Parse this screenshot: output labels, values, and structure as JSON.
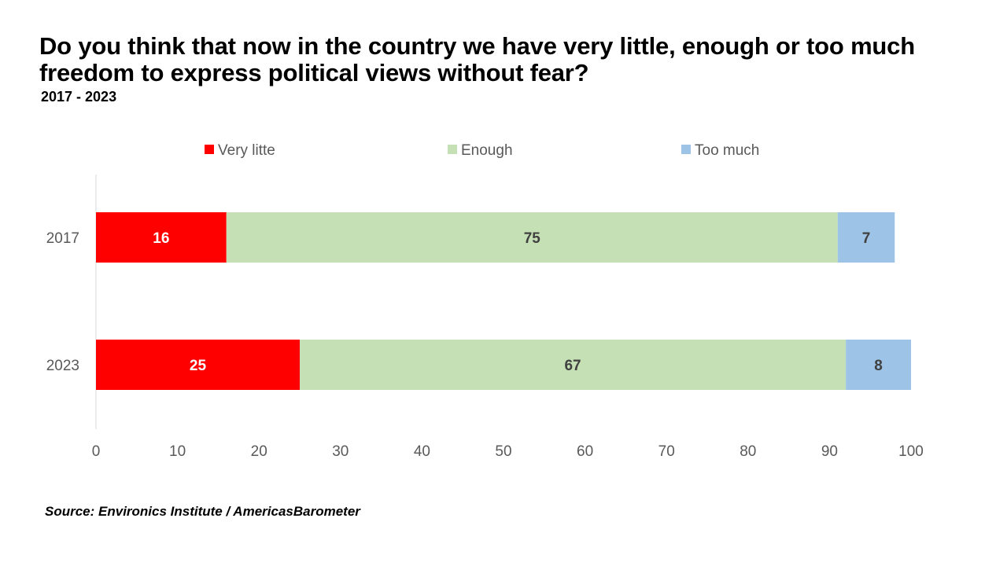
{
  "chart_data": {
    "type": "bar",
    "orientation": "horizontal",
    "stacked": true,
    "title": "Do you think that now in the country we have very little, enough or too much freedom to express political views without fear?",
    "subtitle": "2017 - 2023",
    "categories": [
      "2017",
      "2023"
    ],
    "series": [
      {
        "name": "Very litte",
        "color": "#ff0000",
        "label_color": "#ffffff",
        "values": [
          16,
          25
        ]
      },
      {
        "name": "Enough",
        "color": "#c5e0b4",
        "label_color": "#404040",
        "values": [
          75,
          67
        ]
      },
      {
        "name": "Too much",
        "color": "#9dc3e6",
        "label_color": "#404040",
        "values": [
          7,
          8
        ]
      }
    ],
    "xlim": [
      0,
      100
    ],
    "xticks": [
      "0",
      "10",
      "20",
      "30",
      "40",
      "50",
      "60",
      "70",
      "80",
      "90",
      "100"
    ],
    "grid": false,
    "legend_position": "top",
    "source": "Source: Environics Institute / AmericasBarometer"
  }
}
